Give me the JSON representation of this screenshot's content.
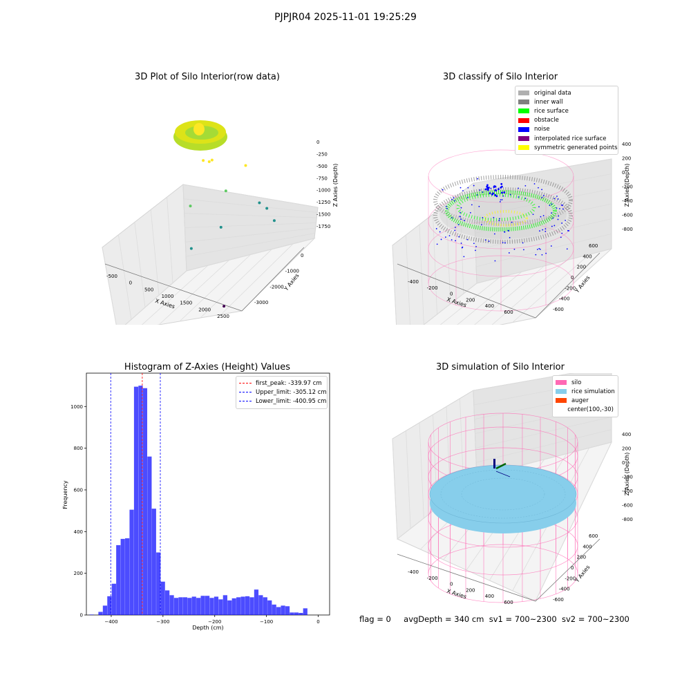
{
  "suptitle": "PJPJR04 2025-11-01 19:25:29",
  "footer": {
    "flag": "flag = 0",
    "avg_depth": "avgDepth = 340 cm",
    "sv1": "sv1 = 700~2300",
    "sv2": "sv2 = 700~2300"
  },
  "chart_data": [
    {
      "type": "scatter",
      "projection": "3d",
      "title": "3D Plot of Silo Interior(row data)",
      "xlabel": "X Axies",
      "ylabel": "Y Axies",
      "zlabel": "Z Axies (Depth)",
      "x_ticks": [
        "-500",
        "0",
        "500",
        "1000",
        "1500",
        "2000",
        "2500"
      ],
      "y_ticks": [
        "-3000",
        "-2000",
        "-1000",
        "0"
      ],
      "z_ticks": [
        "0",
        "-250",
        "-500",
        "-750",
        "-1000",
        "-1250",
        "-1500",
        "-1750"
      ],
      "colormap": "viridis",
      "points": [
        {
          "x": 100,
          "y": -200,
          "z": -300
        },
        {
          "x": 300,
          "y": -150,
          "z": -320
        },
        {
          "x": 200,
          "y": -100,
          "z": -350
        },
        {
          "x": 1300,
          "y": -400,
          "z": -400
        },
        {
          "x": 900,
          "y": -600,
          "z": -700
        },
        {
          "x": 150,
          "y": -900,
          "z": -800
        },
        {
          "x": 1600,
          "y": -300,
          "z": -1000
        },
        {
          "x": 1900,
          "y": -500,
          "z": -1050
        },
        {
          "x": 1100,
          "y": -1200,
          "z": -1100
        },
        {
          "x": 2200,
          "y": -700,
          "z": -1200
        },
        {
          "x": 500,
          "y": -1500,
          "z": -1300
        },
        {
          "x": 2100,
          "y": -2900,
          "z": -1900
        }
      ]
    },
    {
      "type": "scatter",
      "projection": "3d",
      "title": "3D classify of Silo Interior",
      "xlabel": "X Axies",
      "ylabel": "Y Axies",
      "zlabel": "Z Axies (Depth)",
      "x_ticks": [
        "-400",
        "-200",
        "0",
        "200",
        "400",
        "600"
      ],
      "y_ticks": [
        "-600",
        "-400",
        "-200",
        "0",
        "200",
        "400",
        "600"
      ],
      "z_ticks": [
        "-800",
        "-600",
        "-400",
        "-200",
        "0",
        "200",
        "400"
      ],
      "legend_position": "top-right",
      "legend": [
        {
          "label": "original data",
          "color": "#b0b0b0"
        },
        {
          "label": "inner wall",
          "color": "#808080"
        },
        {
          "label": "rice surface",
          "color": "#00ff00"
        },
        {
          "label": "obstacle",
          "color": "#ff0000"
        },
        {
          "label": "noise",
          "color": "#0000ff"
        },
        {
          "label": "interpolated rice surface",
          "color": "#800080"
        },
        {
          "label": "symmetric generated points",
          "color": "#ffff00"
        }
      ]
    },
    {
      "type": "bar",
      "title": "Histogram of Z-Axies (Height) Values",
      "xlabel": "Depth (cm)",
      "ylabel": "Frequency",
      "xlim": [
        -448,
        22
      ],
      "ylim": [
        0,
        1160
      ],
      "x_ticks": [
        -400,
        -300,
        -200,
        -100,
        0
      ],
      "y_ticks": [
        0,
        200,
        400,
        600,
        800,
        1000
      ],
      "bin_width": 8.6,
      "bin_start": -442,
      "bar_color": "#0000ff",
      "values": [
        2,
        0,
        15,
        45,
        90,
        150,
        335,
        365,
        368,
        505,
        1095,
        1100,
        1088,
        760,
        510,
        300,
        160,
        118,
        95,
        82,
        85,
        85,
        82,
        88,
        82,
        92,
        92,
        82,
        88,
        75,
        95,
        70,
        80,
        85,
        88,
        90,
        85,
        122,
        95,
        85,
        70,
        50,
        38,
        45,
        42,
        12,
        12,
        10,
        32
      ],
      "vlines": [
        {
          "label": "first_peak: -339.97 cm",
          "x": -339.97,
          "color": "#ff0000"
        },
        {
          "label": "Upper_limit: -305.12 cm",
          "x": -305.12,
          "color": "#0000ff"
        },
        {
          "label": "Lower_limit: -400.95 cm",
          "x": -400.95,
          "color": "#0000ff"
        }
      ],
      "legend_position": "top-right"
    },
    {
      "type": "surface",
      "projection": "3d",
      "title": "3D simulation of Silo Interior",
      "xlabel": "X Axies",
      "ylabel": "Y Axies",
      "zlabel": "Z Axies (Depth)",
      "x_ticks": [
        "-400",
        "-200",
        "0",
        "200",
        "400",
        "600"
      ],
      "y_ticks": [
        "-600",
        "-400",
        "-200",
        "0",
        "200",
        "400",
        "600"
      ],
      "z_ticks": [
        "-800",
        "-600",
        "-400",
        "-200",
        "0",
        "200",
        "400"
      ],
      "legend_position": "top-right",
      "legend": [
        {
          "label": "silo",
          "color": "#ff69b4"
        },
        {
          "label": "rice simulation",
          "color": "#87ceeb"
        },
        {
          "label": "auger",
          "color": "#ff4500"
        },
        {
          "label": "center(100,-30)",
          "color": ""
        }
      ]
    }
  ]
}
